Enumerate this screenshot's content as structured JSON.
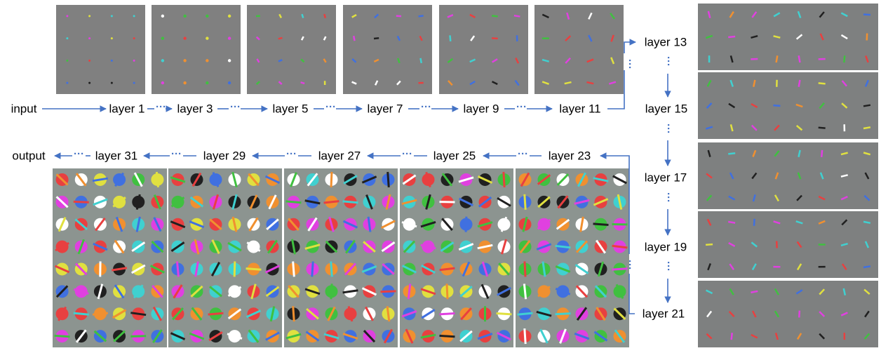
{
  "labels": [
    "input",
    "layer 1",
    "layer 3",
    "layer 5",
    "layer 7",
    "layer 9",
    "layer 11",
    "layer 13",
    "layer 15",
    "layer 17",
    "layer 19",
    "layer 21",
    "layer 23",
    "layer 25",
    "layer 27",
    "layer 29",
    "layer 31",
    "output"
  ]
}
